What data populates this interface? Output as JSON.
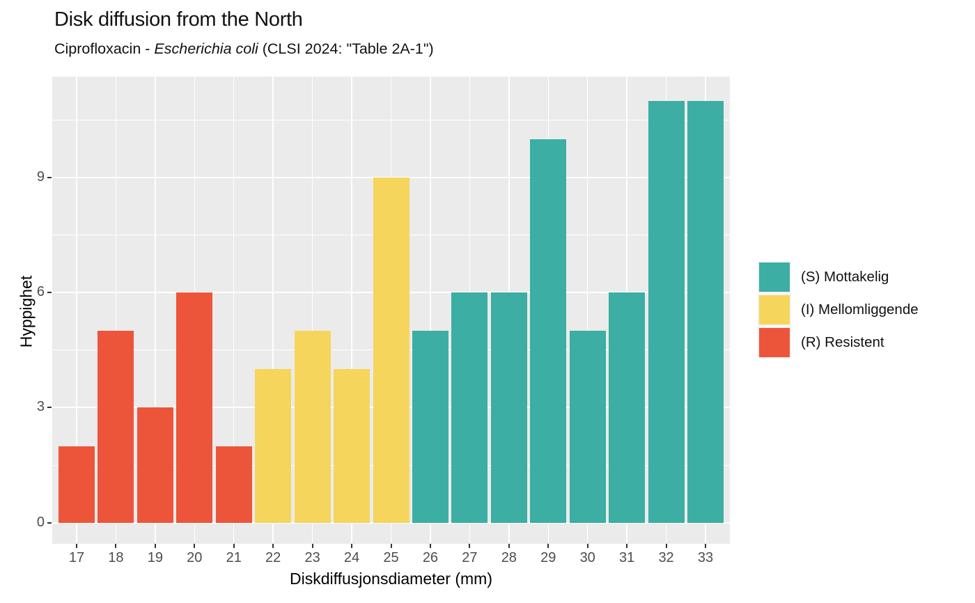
{
  "chart_data": {
    "type": "bar",
    "title": "Disk diffusion from the North",
    "subtitle": {
      "prefix": "Ciprofloxacin - ",
      "italic": "Escherichia coli",
      "suffix": " (CLSI 2024: \"Table 2A-1\")"
    },
    "xlabel": "Diskdiffusjonsdiameter (mm)",
    "ylabel": "Hyppighet",
    "categories": [
      17,
      18,
      19,
      20,
      21,
      22,
      23,
      24,
      25,
      26,
      27,
      28,
      29,
      30,
      31,
      32,
      33
    ],
    "values": [
      2,
      5,
      3,
      6,
      2,
      4,
      5,
      4,
      9,
      5,
      6,
      6,
      10,
      5,
      6,
      11,
      11
    ],
    "groups": [
      "R",
      "R",
      "R",
      "R",
      "R",
      "I",
      "I",
      "I",
      "I",
      "S",
      "S",
      "S",
      "S",
      "S",
      "S",
      "S",
      "S"
    ],
    "group_colors": {
      "S": "#3CAEA3",
      "I": "#F6D55C",
      "R": "#ED553B"
    },
    "legend": [
      {
        "key": "S",
        "label": "(S) Mottakelig",
        "color": "#3CAEA3"
      },
      {
        "key": "I",
        "label": "(I) Mellomliggende",
        "color": "#F6D55C"
      },
      {
        "key": "R",
        "label": "(R) Resistent",
        "color": "#ED553B"
      }
    ],
    "legend_position": "right",
    "y_ticks": [
      0,
      3,
      6,
      9
    ],
    "y_minor_gridlines": [
      1.5,
      4.5,
      7.5,
      10.5
    ],
    "ylim": [
      -0.55,
      11.63
    ],
    "xlim": [
      16.38,
      33.62
    ],
    "grid": true,
    "colors": {
      "panel_bg": "#EBEBEB",
      "grid": "#FFFFFF",
      "tick_mark": "#333333",
      "tick_label": "#4D4D4D",
      "text": "#000000"
    }
  }
}
